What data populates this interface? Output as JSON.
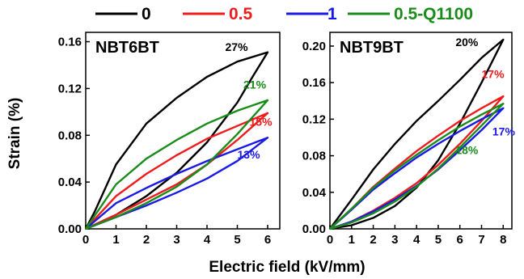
{
  "chart_data": {
    "type": "line",
    "xlabel": "Electric field (kV/mm)",
    "ylabel": "Strain (%)",
    "legend": {
      "placement": "top",
      "entries": [
        {
          "name": "0",
          "color": "#000000"
        },
        {
          "name": "0.5",
          "color": "#ee1c1c"
        },
        {
          "name": "1",
          "color": "#1a1ae6"
        },
        {
          "name": "0.5-Q1100",
          "color": "#1a8c1a"
        }
      ]
    },
    "panels": [
      {
        "title": "NBT6BT",
        "xlim": [
          0,
          6.4
        ],
        "ylim": [
          0,
          0.168
        ],
        "xticks": [
          0,
          1,
          2,
          3,
          4,
          5,
          6
        ],
        "yticks": [
          0.0,
          0.04,
          0.08,
          0.12,
          0.16
        ],
        "ytick_labels": [
          "0.00",
          "0.04",
          "0.08",
          "0.12",
          "0.16"
        ],
        "series": [
          {
            "name": "0",
            "color": "#000000",
            "x_max": 6.0,
            "y_max": 0.151,
            "up": [
              [
                0,
                0
              ],
              [
                1,
                0.012
              ],
              [
                2,
                0.028
              ],
              [
                3,
                0.048
              ],
              [
                4,
                0.074
              ],
              [
                5,
                0.108
              ],
              [
                5.5,
                0.13
              ],
              [
                6,
                0.151
              ]
            ],
            "down": [
              [
                6,
                0.151
              ],
              [
                5,
                0.143
              ],
              [
                4,
                0.13
              ],
              [
                3,
                0.112
              ],
              [
                2,
                0.09
              ],
              [
                1,
                0.055
              ],
              [
                0.3,
                0.015
              ],
              [
                0,
                0
              ]
            ],
            "label": "27%",
            "label_x": 4.6,
            "label_y": 0.152
          },
          {
            "name": "0.5",
            "color": "#ee1c1c",
            "x_max": 6.0,
            "y_max": 0.099,
            "up": [
              [
                0,
                0
              ],
              [
                1,
                0.012
              ],
              [
                2,
                0.025
              ],
              [
                3,
                0.038
              ],
              [
                4,
                0.055
              ],
              [
                5,
                0.076
              ],
              [
                6,
                0.099
              ]
            ],
            "down": [
              [
                6,
                0.099
              ],
              [
                5,
                0.088
              ],
              [
                4,
                0.077
              ],
              [
                3,
                0.063
              ],
              [
                2,
                0.047
              ],
              [
                1,
                0.028
              ],
              [
                0,
                0
              ]
            ],
            "label": "15%",
            "label_x": 5.4,
            "label_y": 0.088
          },
          {
            "name": "1",
            "color": "#1a1ae6",
            "x_max": 6.0,
            "y_max": 0.078,
            "up": [
              [
                0,
                0
              ],
              [
                1,
                0.01
              ],
              [
                2,
                0.02
              ],
              [
                3,
                0.031
              ],
              [
                4,
                0.043
              ],
              [
                5,
                0.058
              ],
              [
                6,
                0.078
              ]
            ],
            "down": [
              [
                6,
                0.078
              ],
              [
                5,
                0.068
              ],
              [
                4,
                0.058
              ],
              [
                3,
                0.047
              ],
              [
                2,
                0.035
              ],
              [
                1,
                0.022
              ],
              [
                0,
                0
              ]
            ],
            "label": "13%",
            "label_x": 5.0,
            "label_y": 0.06
          },
          {
            "name": "0.5-Q1100",
            "color": "#1a8c1a",
            "x_max": 6.0,
            "y_max": 0.11,
            "up": [
              [
                0,
                0
              ],
              [
                1,
                0.01
              ],
              [
                2,
                0.022
              ],
              [
                3,
                0.036
              ],
              [
                4,
                0.055
              ],
              [
                5,
                0.081
              ],
              [
                6,
                0.11
              ]
            ],
            "down": [
              [
                6,
                0.11
              ],
              [
                5,
                0.101
              ],
              [
                4,
                0.09
              ],
              [
                3,
                0.076
              ],
              [
                2,
                0.06
              ],
              [
                1,
                0.038
              ],
              [
                0,
                0
              ]
            ],
            "label": "21%",
            "label_x": 5.2,
            "label_y": 0.12
          }
        ]
      },
      {
        "title": "NBT9BT",
        "xlim": [
          0,
          8.4
        ],
        "ylim": [
          0,
          0.215
        ],
        "xticks": [
          0,
          1,
          2,
          3,
          4,
          5,
          6,
          7,
          8
        ],
        "yticks": [
          0.0,
          0.04,
          0.08,
          0.12,
          0.16,
          0.2
        ],
        "ytick_labels": [
          "0.00",
          "0.04",
          "0.08",
          "0.12",
          "0.16",
          "0.20"
        ],
        "series": [
          {
            "name": "0",
            "color": "#000000",
            "x_max": 8.0,
            "y_max": 0.207,
            "up": [
              [
                0,
                0
              ],
              [
                1,
                0.004
              ],
              [
                2,
                0.012
              ],
              [
                3,
                0.025
              ],
              [
                4,
                0.045
              ],
              [
                5,
                0.075
              ],
              [
                6,
                0.115
              ],
              [
                7,
                0.16
              ],
              [
                8,
                0.207
              ]
            ],
            "down": [
              [
                8,
                0.207
              ],
              [
                7,
                0.187
              ],
              [
                6,
                0.163
              ],
              [
                5,
                0.14
              ],
              [
                4,
                0.118
              ],
              [
                3,
                0.093
              ],
              [
                2,
                0.065
              ],
              [
                1,
                0.032
              ],
              [
                0,
                0
              ]
            ],
            "label": "20%",
            "label_x": 5.8,
            "label_y": 0.2
          },
          {
            "name": "0.5",
            "color": "#ee1c1c",
            "x_max": 8.0,
            "y_max": 0.145,
            "up": [
              [
                0,
                0
              ],
              [
                1,
                0.008
              ],
              [
                2,
                0.02
              ],
              [
                3,
                0.034
              ],
              [
                4,
                0.05
              ],
              [
                5,
                0.07
              ],
              [
                6,
                0.093
              ],
              [
                7,
                0.118
              ],
              [
                8,
                0.145
              ]
            ],
            "down": [
              [
                8,
                0.145
              ],
              [
                7,
                0.132
              ],
              [
                6,
                0.118
              ],
              [
                5,
                0.102
              ],
              [
                4,
                0.085
              ],
              [
                3,
                0.066
              ],
              [
                2,
                0.046
              ],
              [
                1,
                0.022
              ],
              [
                0,
                0
              ]
            ],
            "label": "17%",
            "label_x": 7.0,
            "label_y": 0.165
          },
          {
            "name": "1",
            "color": "#1a1ae6",
            "x_max": 8.0,
            "y_max": 0.132,
            "up": [
              [
                0,
                0
              ],
              [
                1,
                0.008
              ],
              [
                2,
                0.019
              ],
              [
                3,
                0.032
              ],
              [
                4,
                0.047
              ],
              [
                5,
                0.065
              ],
              [
                6,
                0.086
              ],
              [
                7,
                0.108
              ],
              [
                8,
                0.132
              ]
            ],
            "down": [
              [
                8,
                0.132
              ],
              [
                7,
                0.12
              ],
              [
                6,
                0.107
              ],
              [
                5,
                0.093
              ],
              [
                4,
                0.078
              ],
              [
                3,
                0.061
              ],
              [
                2,
                0.043
              ],
              [
                1,
                0.021
              ],
              [
                0,
                0
              ]
            ],
            "label": "17%",
            "label_x": 7.5,
            "label_y": 0.102
          },
          {
            "name": "0.5-Q1100",
            "color": "#1a8c1a",
            "x_max": 8.0,
            "y_max": 0.137,
            "up": [
              [
                0,
                0
              ],
              [
                1,
                0.007
              ],
              [
                2,
                0.017
              ],
              [
                3,
                0.03
              ],
              [
                4,
                0.046
              ],
              [
                5,
                0.066
              ],
              [
                6,
                0.089
              ],
              [
                7,
                0.113
              ],
              [
                8,
                0.137
              ]
            ],
            "down": [
              [
                8,
                0.137
              ],
              [
                7,
                0.125
              ],
              [
                6,
                0.112
              ],
              [
                5,
                0.097
              ],
              [
                4,
                0.081
              ],
              [
                3,
                0.064
              ],
              [
                2,
                0.045
              ],
              [
                1,
                0.022
              ],
              [
                0,
                0
              ]
            ],
            "label": "18%",
            "label_x": 5.8,
            "label_y": 0.082
          }
        ]
      }
    ]
  }
}
